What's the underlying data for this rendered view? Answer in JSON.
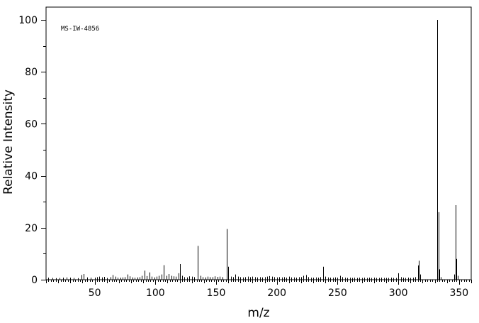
{
  "chart_data": {
    "type": "bar",
    "title": "",
    "annotation": "MS-IW-4856",
    "xlabel": "m/z",
    "ylabel": "Relative Intensity",
    "xlim": [
      10,
      360
    ],
    "ylim": [
      0,
      100
    ],
    "x_ticks": [
      50,
      100,
      150,
      200,
      250,
      300,
      350
    ],
    "y_ticks": [
      0,
      20,
      40,
      60,
      80,
      100
    ],
    "grid": false,
    "peaks": [
      [
        12,
        0.8
      ],
      [
        15,
        0.7
      ],
      [
        18,
        0.6
      ],
      [
        21,
        0.7
      ],
      [
        24,
        0.8
      ],
      [
        27,
        0.9
      ],
      [
        30,
        0.8
      ],
      [
        33,
        0.7
      ],
      [
        36,
        0.6
      ],
      [
        39,
        1.8
      ],
      [
        41,
        2.2
      ],
      [
        44,
        0.9
      ],
      [
        47,
        0.8
      ],
      [
        50,
        0.8
      ],
      [
        52,
        1.0
      ],
      [
        54,
        1.2
      ],
      [
        56,
        0.9
      ],
      [
        58,
        1.1
      ],
      [
        60,
        0.7
      ],
      [
        63,
        1.0
      ],
      [
        65,
        1.8
      ],
      [
        67,
        1.2
      ],
      [
        69,
        0.8
      ],
      [
        71,
        0.8
      ],
      [
        73,
        0.9
      ],
      [
        75,
        1.0
      ],
      [
        77,
        2.0
      ],
      [
        79,
        1.3
      ],
      [
        81,
        0.9
      ],
      [
        83,
        0.8
      ],
      [
        85,
        0.9
      ],
      [
        87,
        1.0
      ],
      [
        89,
        1.5
      ],
      [
        91,
        3.5
      ],
      [
        93,
        1.4
      ],
      [
        95,
        2.8
      ],
      [
        97,
        1.2
      ],
      [
        99,
        0.9
      ],
      [
        101,
        1.2
      ],
      [
        103,
        1.5
      ],
      [
        105,
        2.0
      ],
      [
        107,
        5.6
      ],
      [
        109,
        1.5
      ],
      [
        111,
        2.2
      ],
      [
        113,
        1.5
      ],
      [
        115,
        1.3
      ],
      [
        117,
        1.2
      ],
      [
        119,
        2.5
      ],
      [
        120,
        6.0
      ],
      [
        122,
        1.5
      ],
      [
        124,
        1.0
      ],
      [
        126,
        0.9
      ],
      [
        128,
        1.3
      ],
      [
        130,
        1.2
      ],
      [
        132,
        1.0
      ],
      [
        135,
        13.0
      ],
      [
        137,
        1.5
      ],
      [
        139,
        1.0
      ],
      [
        141,
        0.9
      ],
      [
        143,
        1.2
      ],
      [
        145,
        1.0
      ],
      [
        147,
        1.0
      ],
      [
        149,
        1.3
      ],
      [
        151,
        1.1
      ],
      [
        153,
        1.2
      ],
      [
        155,
        1.0
      ],
      [
        159,
        19.5
      ],
      [
        160,
        5.0
      ],
      [
        162,
        1.2
      ],
      [
        164,
        1.0
      ],
      [
        166,
        2.0
      ],
      [
        168,
        1.2
      ],
      [
        170,
        1.0
      ],
      [
        172,
        0.9
      ],
      [
        174,
        1.0
      ],
      [
        176,
        1.2
      ],
      [
        178,
        1.0
      ],
      [
        180,
        1.2
      ],
      [
        182,
        1.0
      ],
      [
        184,
        0.9
      ],
      [
        186,
        1.0
      ],
      [
        188,
        0.9
      ],
      [
        190,
        1.0
      ],
      [
        192,
        1.2
      ],
      [
        194,
        1.4
      ],
      [
        196,
        1.2
      ],
      [
        198,
        1.0
      ],
      [
        200,
        0.9
      ],
      [
        202,
        1.0
      ],
      [
        204,
        0.9
      ],
      [
        206,
        1.0
      ],
      [
        208,
        0.8
      ],
      [
        210,
        1.2
      ],
      [
        212,
        0.9
      ],
      [
        214,
        0.9
      ],
      [
        216,
        0.8
      ],
      [
        218,
        1.0
      ],
      [
        220,
        1.0
      ],
      [
        222,
        1.5
      ],
      [
        224,
        1.8
      ],
      [
        226,
        1.0
      ],
      [
        228,
        0.8
      ],
      [
        230,
        0.8
      ],
      [
        232,
        0.9
      ],
      [
        234,
        0.8
      ],
      [
        236,
        1.0
      ],
      [
        238,
        5.0
      ],
      [
        240,
        1.2
      ],
      [
        242,
        0.9
      ],
      [
        244,
        0.8
      ],
      [
        246,
        0.8
      ],
      [
        248,
        0.9
      ],
      [
        250,
        0.8
      ],
      [
        252,
        1.5
      ],
      [
        254,
        1.0
      ],
      [
        256,
        0.8
      ],
      [
        258,
        0.7
      ],
      [
        260,
        0.8
      ],
      [
        262,
        0.7
      ],
      [
        264,
        0.8
      ],
      [
        266,
        0.7
      ],
      [
        268,
        0.8
      ],
      [
        270,
        0.7
      ],
      [
        272,
        0.8
      ],
      [
        274,
        0.7
      ],
      [
        276,
        0.8
      ],
      [
        278,
        0.7
      ],
      [
        280,
        0.8
      ],
      [
        282,
        0.7
      ],
      [
        284,
        0.7
      ],
      [
        286,
        0.8
      ],
      [
        288,
        0.7
      ],
      [
        290,
        0.7
      ],
      [
        292,
        0.7
      ],
      [
        294,
        0.8
      ],
      [
        296,
        0.7
      ],
      [
        298,
        0.7
      ],
      [
        300,
        2.5
      ],
      [
        302,
        1.0
      ],
      [
        304,
        0.8
      ],
      [
        306,
        0.7
      ],
      [
        308,
        0.8
      ],
      [
        310,
        0.7
      ],
      [
        312,
        0.8
      ],
      [
        314,
        1.0
      ],
      [
        316,
        5.5
      ],
      [
        317,
        7.3
      ],
      [
        318,
        2.0
      ],
      [
        332,
        100
      ],
      [
        333,
        26
      ],
      [
        334,
        4.0
      ],
      [
        335,
        1.0
      ],
      [
        346,
        2.0
      ],
      [
        347,
        28.7
      ],
      [
        348,
        8.0
      ],
      [
        349,
        1.5
      ]
    ]
  }
}
